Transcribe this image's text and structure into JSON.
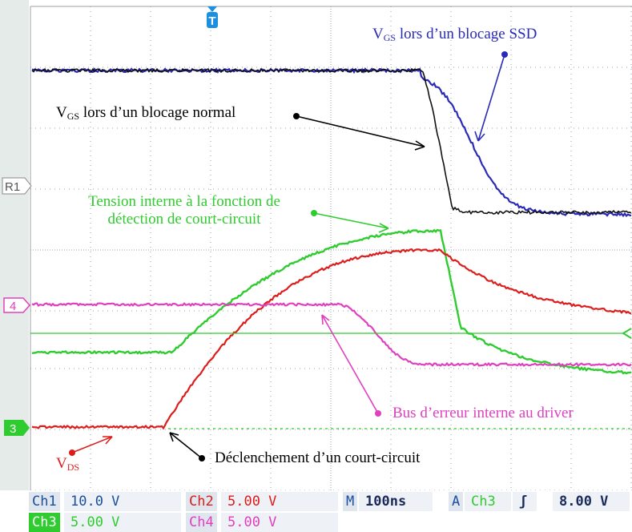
{
  "trigger_marker": {
    "label": "T",
    "color": "#1b8fe0"
  },
  "markers": {
    "r1": {
      "label": "R1"
    },
    "ch4": {
      "label": "4",
      "color": "#e040c0"
    },
    "ch3": {
      "label": "3",
      "color": "#2ecc2e"
    }
  },
  "annotations": {
    "vgs_ssd": {
      "prefix": "V",
      "sub": "GS",
      "text": " lors d’un blocage SSD",
      "color": "#2a2ab8"
    },
    "vgs_normal": {
      "prefix": "V",
      "sub": "GS",
      "text": " lors d’un blocage normal",
      "color": "#000000"
    },
    "tension_line1": "Tension interne à la fonction de",
    "tension_line2": "détection de court-circuit",
    "bus_erreur": "Bus d’erreur interne au driver",
    "vds": {
      "prefix": "V",
      "sub": "DS",
      "color": "#dd1c1c"
    },
    "declenchement": "Déclenchement d’un court-circuit"
  },
  "status_bar": {
    "ch1_label": "Ch1",
    "ch1_value": "10.0 V",
    "ch2_label": "Ch2",
    "ch2_value": "5.00 V",
    "ch3_label": "Ch3",
    "ch3_value": "5.00 V",
    "ch4_label": "Ch4",
    "ch4_value": "5.00 V",
    "m_label": "M",
    "timebase": "100ns",
    "a_label": "A",
    "trig_channel": "Ch3",
    "trig_slope": "ʃ",
    "trig_level": "8.00 V"
  },
  "colors": {
    "ch1_blue": "#2a2ab8",
    "ch_black": "#111111",
    "ch2_red": "#dd1c1c",
    "ch3_green": "#2ecc2e",
    "ch4_magenta": "#e040c0"
  }
}
